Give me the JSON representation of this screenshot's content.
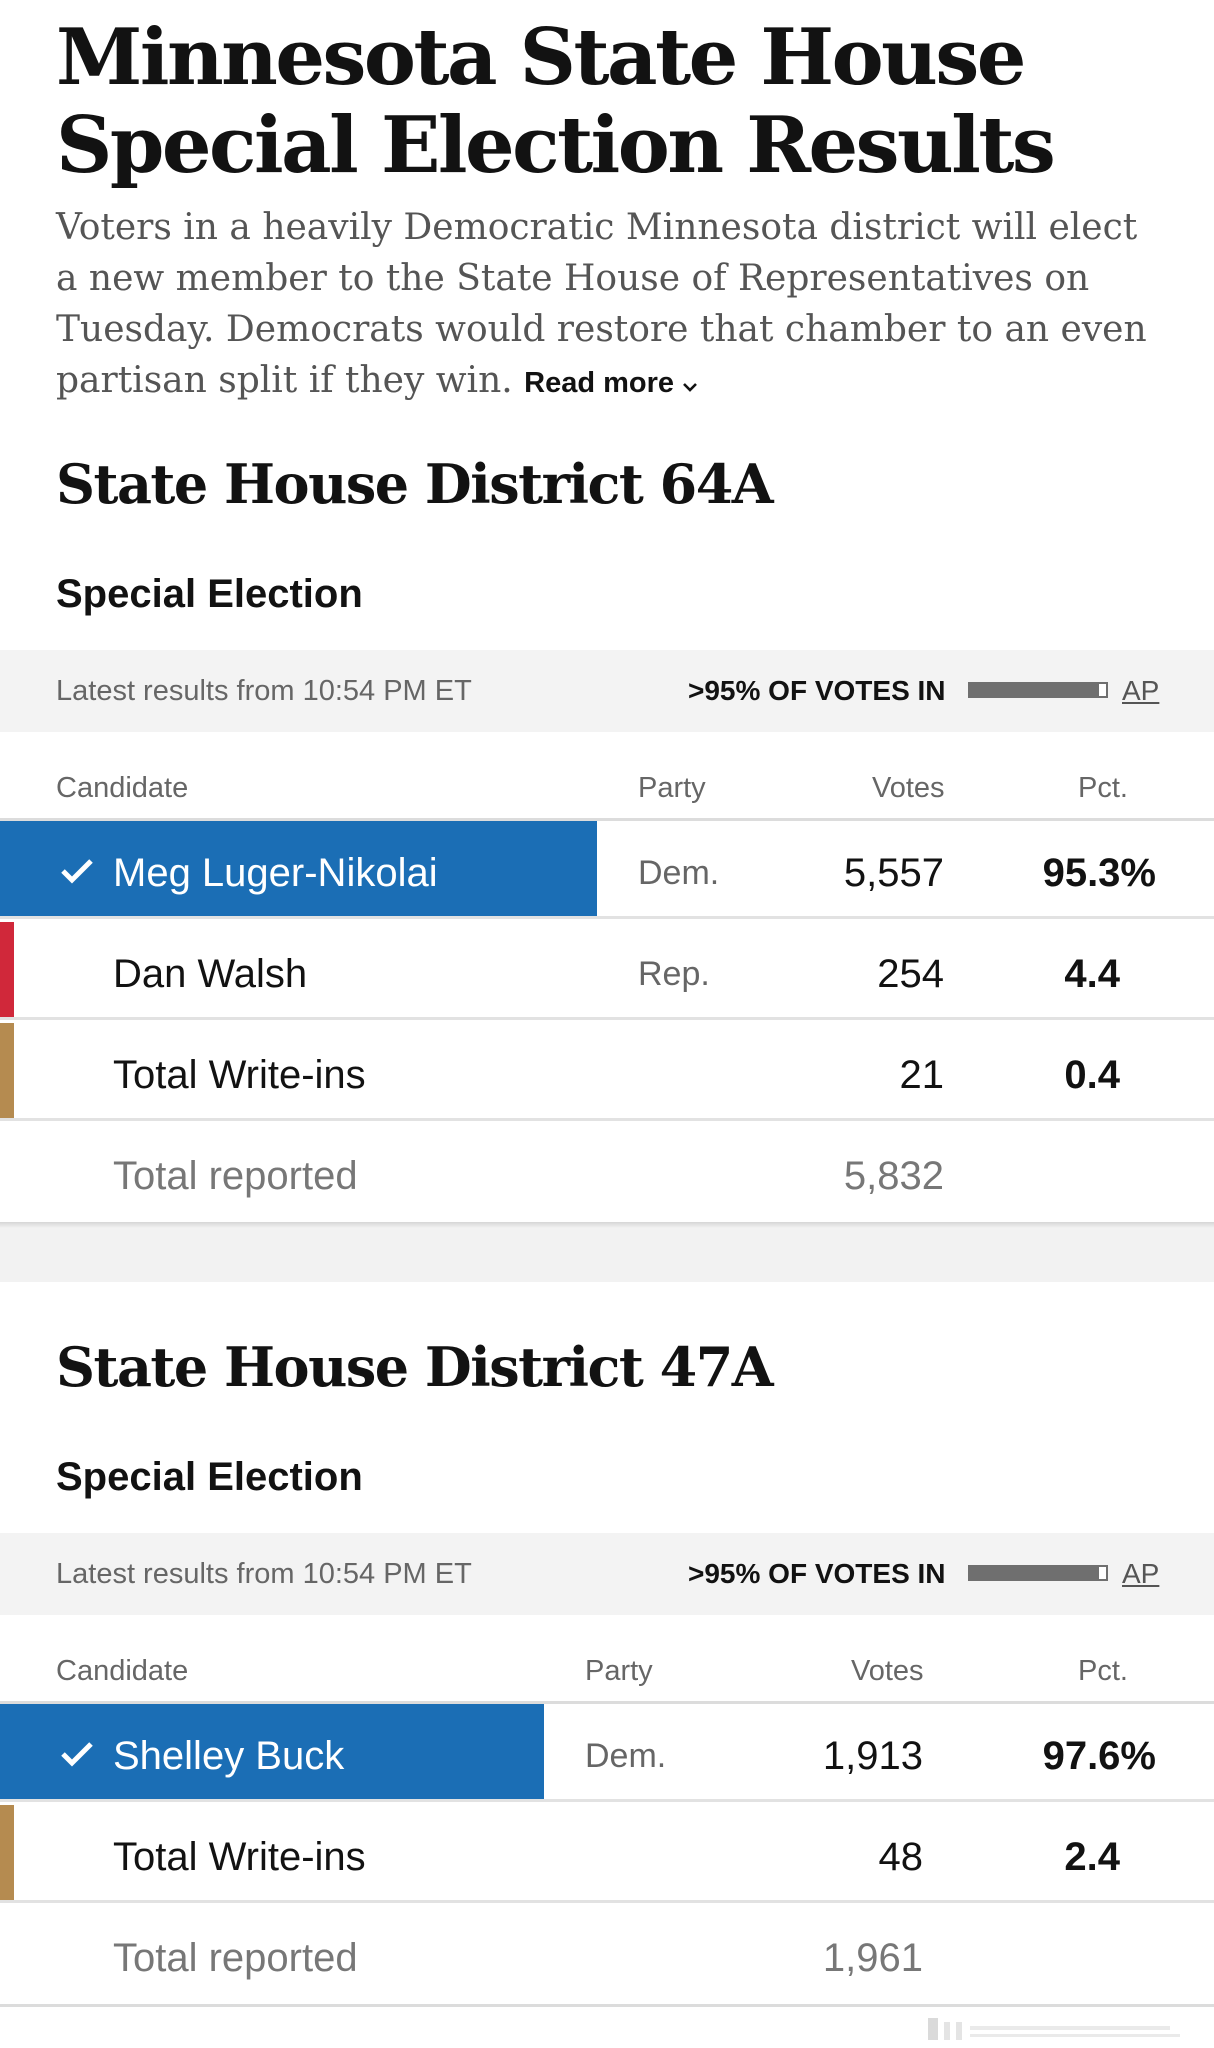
{
  "page": {
    "title": "Minnesota State House Special Election Results",
    "intro": "Voters in a heavily Democratic Minnesota district will elect a new member to the State House of Representatives on Tuesday. Democrats would restore that chamber to an even partisan split if they win.",
    "read_more": "Read more"
  },
  "colors": {
    "winner_bg": "#1b6eb5",
    "rep": "#d0283a",
    "write_in": "#b58b50",
    "progress": "#6f6f6f"
  },
  "races": [
    {
      "title": "State House District 64A",
      "subtitle": "Special Election",
      "latest": "Latest results from 10:54 PM ET",
      "votes_in": ">95% OF VOTES IN",
      "votes_in_fraction": 0.95,
      "source": "AP",
      "headers": {
        "candidate": "Candidate",
        "party": "Party",
        "votes": "Votes",
        "pct": "Pct."
      },
      "rows": [
        {
          "name": "Meg Luger-Nikolai",
          "party": "Dem.",
          "votes": "5,557",
          "pct": "95.3%",
          "winner": true
        },
        {
          "name": "Dan Walsh",
          "party": "Rep.",
          "votes": "254",
          "pct": "4.4",
          "winner": false
        },
        {
          "name": "Total Write-ins",
          "party": "",
          "votes": "21",
          "pct": "0.4",
          "winner": false
        }
      ],
      "total_label": "Total reported",
      "total_votes": "5,832"
    },
    {
      "title": "State House District 47A",
      "subtitle": "Special Election",
      "latest": "Latest results from 10:54 PM ET",
      "votes_in": ">95% OF VOTES IN",
      "votes_in_fraction": 0.95,
      "source": "AP",
      "headers": {
        "candidate": "Candidate",
        "party": "Party",
        "votes": "Votes",
        "pct": "Pct."
      },
      "rows": [
        {
          "name": "Shelley Buck",
          "party": "Dem.",
          "votes": "1,913",
          "pct": "97.6%",
          "winner": true
        },
        {
          "name": "Total Write-ins",
          "party": "",
          "votes": "48",
          "pct": "2.4",
          "winner": false
        }
      ],
      "total_label": "Total reported",
      "total_votes": "1,961"
    }
  ]
}
